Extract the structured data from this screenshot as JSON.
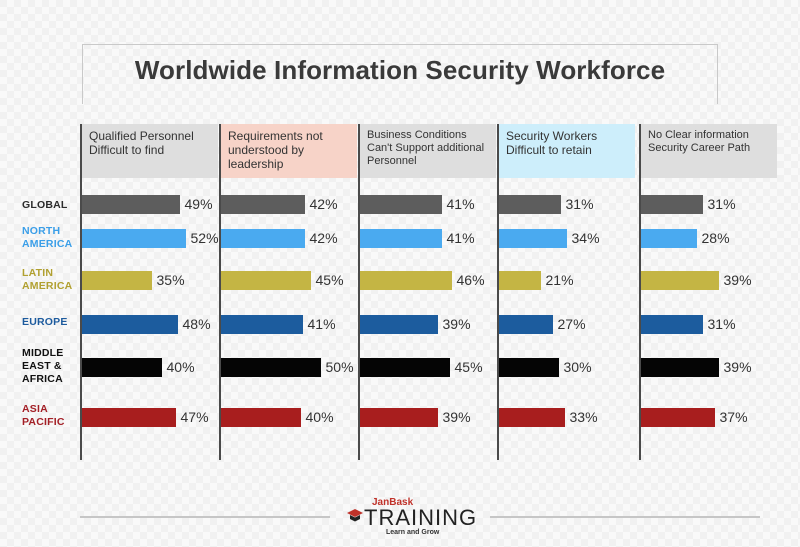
{
  "title": "Worldwide Information Security Workforce",
  "chart_data": {
    "type": "bar",
    "orientation": "horizontal",
    "title": "Worldwide Information Security Workforce",
    "categories": [
      "GLOBAL",
      "NORTH AMERICA",
      "LATIN AMERICA",
      "EUROPE",
      "MIDDLE EAST & AFRICA",
      "ASIA PACIFIC"
    ],
    "region_colors": [
      "#5d5d5d",
      "#4aaaf0",
      "#c4b544",
      "#1c5c9e",
      "#050505",
      "#a81e1e"
    ],
    "region_label_colors": [
      "#2b2b2b",
      "#3a9ee8",
      "#b1a030",
      "#1d5b9e",
      "#111111",
      "#a31f26"
    ],
    "series": [
      {
        "name": "Qualified Personnel Difficult to find",
        "header_bg": "#dedede",
        "values": [
          49,
          52,
          35,
          48,
          40,
          47
        ]
      },
      {
        "name": "Requirements not understood by leadership",
        "header_bg": "#f7d3c8",
        "values": [
          42,
          42,
          45,
          41,
          50,
          40
        ]
      },
      {
        "name": "Business Conditions Can't Support additional Personnel",
        "header_bg": "#dedede",
        "values": [
          41,
          41,
          46,
          39,
          45,
          39
        ]
      },
      {
        "name": "Security Workers Difficult to retain",
        "header_bg": "#cdeefb",
        "values": [
          31,
          34,
          21,
          27,
          30,
          33
        ]
      },
      {
        "name": "No Clear information Security Career Path",
        "header_bg": "#dedede",
        "values": [
          31,
          28,
          39,
          31,
          39,
          37
        ]
      }
    ],
    "value_suffix": "%",
    "grid": false,
    "legend": "none"
  },
  "logo": {
    "brand": "JanBask",
    "name": "TRAINING",
    "tagline": "Learn and Grow"
  }
}
